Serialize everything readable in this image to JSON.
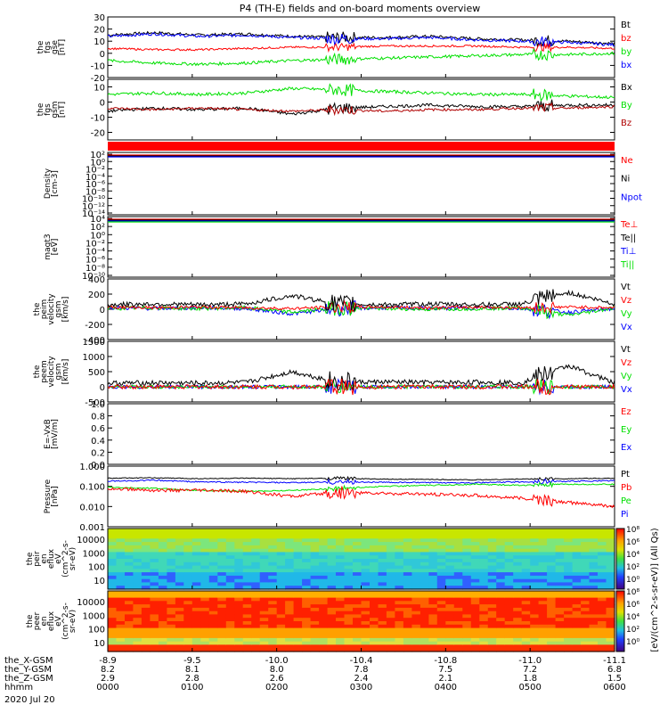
{
  "title": "P4 (TH-E) fields and on-board moments overview",
  "date_label": "2020 Jul 20",
  "colors": {
    "black": "#000000",
    "red": "#ff0000",
    "green": "#00e000",
    "blue": "#0000ff",
    "darkred": "#b00000",
    "grid": "#000000"
  },
  "chart_data": [
    {
      "id": "fgs_gse",
      "type": "line",
      "ylabel": [
        "the",
        "fgs",
        "gse",
        "[nT]"
      ],
      "ylim": [
        -20,
        30
      ],
      "yticks": [
        "30",
        "20",
        "10",
        "0",
        "-10",
        "-20"
      ],
      "yticks_vals": [
        30,
        20,
        10,
        0,
        -10,
        -20
      ],
      "legend": [
        {
          "label": "Bt",
          "color": "#000000"
        },
        {
          "label": "bz",
          "color": "#ff0000"
        },
        {
          "label": "by",
          "color": "#00e000"
        },
        {
          "label": "bx",
          "color": "#0000ff"
        }
      ],
      "series": [
        {
          "name": "Bt",
          "color": "#000000",
          "base": [
            15,
            17,
            15,
            16,
            14,
            13,
            13,
            14,
            12,
            11,
            10,
            8
          ],
          "noise": 1.2
        },
        {
          "name": "bx",
          "color": "#0000ff",
          "base": [
            14,
            16,
            14,
            15,
            13,
            12,
            12,
            13,
            11,
            10,
            9,
            7
          ],
          "noise": 1.2
        },
        {
          "name": "bz",
          "color": "#ff0000",
          "base": [
            4,
            3,
            3,
            4,
            5,
            5,
            6,
            6,
            6,
            5,
            5,
            4
          ],
          "noise": 0.8
        },
        {
          "name": "by",
          "color": "#00e000",
          "base": [
            -6,
            -8,
            -9,
            -8,
            -6,
            -5,
            -4,
            -3,
            -2,
            -1,
            -1,
            0
          ],
          "noise": 1.2
        }
      ]
    },
    {
      "id": "fgs_gsm",
      "type": "line",
      "ylabel": [
        "the",
        "fgs",
        "gsm",
        "[nT]"
      ],
      "ylim": [
        -25,
        15
      ],
      "yticks": [
        "10",
        "0",
        "-10",
        "-20"
      ],
      "yticks_vals": [
        10,
        0,
        -10,
        -20
      ],
      "legend": [
        {
          "label": "Bx",
          "color": "#000000"
        },
        {
          "label": "By",
          "color": "#00e000"
        },
        {
          "label": "Bz",
          "color": "#b00000"
        }
      ],
      "series": [
        {
          "name": "By",
          "color": "#00e000",
          "base": [
            5,
            6,
            5,
            6,
            9,
            8,
            7,
            6,
            5,
            5,
            4,
            3
          ],
          "noise": 1.0
        },
        {
          "name": "Bx",
          "color": "#000000",
          "base": [
            -6,
            -4,
            -5,
            -4,
            -8,
            -4,
            -3,
            -2,
            -3,
            -3,
            -2,
            -2
          ],
          "noise": 1.0
        },
        {
          "name": "Bz",
          "color": "#b00000",
          "base": [
            -4,
            -5,
            -4,
            -5,
            -6,
            -5,
            -6,
            -5,
            -5,
            -4,
            -4,
            -3
          ],
          "noise": 0.8
        }
      ]
    },
    {
      "id": "density",
      "type": "log_line",
      "ylabel": [
        "Density",
        "[cm-3]"
      ],
      "yticks": [
        "10²",
        "10⁰",
        "10⁻²",
        "10⁻⁴",
        "10⁻⁶",
        "10⁻⁸",
        "10⁻¹⁰",
        "10⁻¹²",
        "10⁻¹⁴"
      ],
      "legend": [
        {
          "label": "Ne",
          "color": "#ff0000"
        },
        {
          "label": "Ni",
          "color": "#000000"
        },
        {
          "label": "Npot",
          "color": "#0000ff"
        }
      ]
    },
    {
      "id": "temp",
      "type": "log_line",
      "ylabel": [
        "magt3",
        "[eV]"
      ],
      "yticks": [
        "10⁴",
        "10²",
        "10⁰",
        "10⁻²",
        "10⁻⁴",
        "10⁻⁶",
        "10⁻⁸",
        "10⁻¹⁰"
      ],
      "legend": [
        {
          "label": "Te⊥",
          "color": "#ff0000"
        },
        {
          "label": "Te||",
          "color": "#000000"
        },
        {
          "label": "Ti⊥",
          "color": "#0000ff"
        },
        {
          "label": "Ti||",
          "color": "#00e000"
        }
      ]
    },
    {
      "id": "peim_vel",
      "type": "line",
      "ylabel": [
        "the",
        "peim",
        "velocity",
        "gsm",
        "[km/s]"
      ],
      "ylim": [
        -400,
        400
      ],
      "yticks": [
        "400",
        "200",
        "0",
        "-200",
        "-400"
      ],
      "yticks_vals": [
        400,
        200,
        0,
        -200,
        -400
      ],
      "legend": [
        {
          "label": "Vt",
          "color": "#000000"
        },
        {
          "label": "Vz",
          "color": "#ff0000"
        },
        {
          "label": "Vy",
          "color": "#00e000"
        },
        {
          "label": "Vx",
          "color": "#0000ff"
        }
      ],
      "series": [
        {
          "name": "Vx",
          "color": "#0000ff",
          "base": [
            20,
            10,
            20,
            10,
            -60,
            10,
            20,
            10,
            20,
            10,
            -40,
            10
          ],
          "noise": 25
        },
        {
          "name": "Vy",
          "color": "#00e000",
          "base": [
            10,
            20,
            10,
            20,
            -40,
            20,
            10,
            0,
            10,
            20,
            -80,
            20
          ],
          "noise": 25
        },
        {
          "name": "Vz",
          "color": "#ff0000",
          "base": [
            30,
            20,
            30,
            20,
            10,
            30,
            30,
            20,
            30,
            20,
            30,
            20
          ],
          "noise": 20
        },
        {
          "name": "Vt",
          "color": "#000000",
          "base": [
            60,
            70,
            60,
            70,
            180,
            70,
            60,
            70,
            60,
            70,
            220,
            70
          ],
          "noise": 30
        }
      ]
    },
    {
      "id": "peem_vel",
      "type": "line",
      "ylabel": [
        "the",
        "peem",
        "velocity",
        "gsm",
        "[km/s]"
      ],
      "ylim": [
        -500,
        1500
      ],
      "yticks": [
        "1500",
        "1000",
        "500",
        "0",
        "-500"
      ],
      "yticks_vals": [
        1500,
        1000,
        500,
        0,
        -500
      ],
      "legend": [
        {
          "label": "Vt",
          "color": "#000000"
        },
        {
          "label": "Vz",
          "color": "#ff0000"
        },
        {
          "label": "Vy",
          "color": "#00e000"
        },
        {
          "label": "Vx",
          "color": "#0000ff"
        }
      ],
      "series": [
        {
          "name": "Vx",
          "color": "#0000ff",
          "base": [
            0,
            0,
            0,
            0,
            0,
            0,
            0,
            0,
            0,
            0,
            0,
            0
          ],
          "noise": 60
        },
        {
          "name": "Vy",
          "color": "#00e000",
          "base": [
            0,
            0,
            0,
            0,
            0,
            0,
            0,
            0,
            0,
            0,
            0,
            0
          ],
          "noise": 60
        },
        {
          "name": "Vt",
          "color": "#000000",
          "base": [
            120,
            130,
            120,
            140,
            500,
            150,
            160,
            140,
            150,
            140,
            700,
            130
          ],
          "noise": 80
        },
        {
          "name": "Vz",
          "color": "#ff0000",
          "base": [
            0,
            0,
            0,
            0,
            0,
            0,
            0,
            0,
            0,
            0,
            0,
            0
          ],
          "noise": 70
        }
      ]
    },
    {
      "id": "efield",
      "type": "empty",
      "ylabel": [
        "E=-VxB",
        "[mV/m]"
      ],
      "ylim": [
        0,
        1
      ],
      "yticks": [
        "1.0",
        "0.8",
        "0.6",
        "0.4",
        "0.2",
        "0.0"
      ],
      "yticks_vals": [
        1.0,
        0.8,
        0.6,
        0.4,
        0.2,
        0.0
      ],
      "legend": [
        {
          "label": "Ez",
          "color": "#ff0000"
        },
        {
          "label": "Ey",
          "color": "#00e000"
        },
        {
          "label": "Ex",
          "color": "#0000ff"
        }
      ]
    },
    {
      "id": "pressure",
      "type": "log_line",
      "ylabel": [
        "Pressure",
        "[nPa]"
      ],
      "ylim_log": [
        -3,
        0
      ],
      "yticks": [
        "1.000",
        "0.100",
        "0.010",
        "0.001"
      ],
      "yticks_vals": [
        0,
        -1,
        -2,
        -3
      ],
      "legend": [
        {
          "label": "Pt",
          "color": "#000000"
        },
        {
          "label": "Pb",
          "color": "#ff0000"
        },
        {
          "label": "Pe",
          "color": "#00e000"
        },
        {
          "label": "Pi",
          "color": "#0000ff"
        }
      ],
      "series": [
        {
          "name": "Pt",
          "color": "#000000",
          "base": [
            -0.6,
            -0.58,
            -0.62,
            -0.6,
            -0.62,
            -0.6,
            -0.65,
            -0.66,
            -0.68,
            -0.64,
            -0.62,
            -0.6
          ],
          "noise": 0.02
        },
        {
          "name": "Pi",
          "color": "#0000ff",
          "base": [
            -0.75,
            -0.7,
            -0.78,
            -0.8,
            -0.82,
            -0.78,
            -0.8,
            -0.82,
            -0.82,
            -0.78,
            -0.75,
            -0.72
          ],
          "noise": 0.03
        },
        {
          "name": "Pe",
          "color": "#00e000",
          "base": [
            -1.05,
            -1.1,
            -1.2,
            -1.25,
            -1.2,
            -1.1,
            -1.0,
            -0.95,
            -0.9,
            -0.95,
            -0.9,
            -0.9
          ],
          "noise": 0.03
        },
        {
          "name": "Pb",
          "color": "#ff0000",
          "base": [
            -1.1,
            -1.2,
            -1.2,
            -1.25,
            -1.5,
            -1.3,
            -1.35,
            -1.4,
            -1.45,
            -1.6,
            -1.8,
            -2.0
          ],
          "noise": 0.08
        }
      ]
    },
    {
      "id": "peir",
      "type": "heatmap",
      "ylabel": [
        "the",
        "peir",
        "en",
        "eflux",
        "eV",
        "(cm^2-s-",
        "sr-eV)"
      ],
      "yticks": [
        "10000",
        "1000",
        "100",
        "10"
      ],
      "yticks_vals": [
        4,
        3,
        2,
        1
      ]
    },
    {
      "id": "peer",
      "type": "heatmap",
      "ylabel": [
        "the",
        "peer",
        "en",
        "eflux",
        "eV",
        "(cm^2-s-",
        "sr-eV)"
      ],
      "yticks": [
        "10000",
        "1000",
        "100",
        "10"
      ],
      "yticks_vals": [
        4,
        3,
        2,
        1
      ]
    }
  ],
  "colorbar": {
    "label": "[eV/(cm^2-s-sr-eV)] (All Qs)",
    "ticks": [
      "10⁸",
      "10⁶",
      "10⁴",
      "10²",
      "10⁰",
      "10⁸",
      "10⁶",
      "10⁴",
      "10²",
      "10⁰"
    ]
  },
  "xaxis": {
    "row_labels": [
      "the_X-GSM",
      "the_Y-GSM",
      "the_Z-GSM",
      "hhmm"
    ],
    "columns": [
      [
        "-8.9",
        "8.2",
        "2.9",
        "0000"
      ],
      [
        "-9.5",
        "8.1",
        "2.8",
        "0100"
      ],
      [
        "-10.0",
        "8.0",
        "2.6",
        "0200"
      ],
      [
        "-10.4",
        "7.8",
        "2.4",
        "0300"
      ],
      [
        "-10.8",
        "7.5",
        "2.1",
        "0400"
      ],
      [
        "-11.0",
        "7.2",
        "1.8",
        "0500"
      ],
      [
        "-11.1",
        "6.8",
        "1.5",
        "0600"
      ]
    ]
  }
}
